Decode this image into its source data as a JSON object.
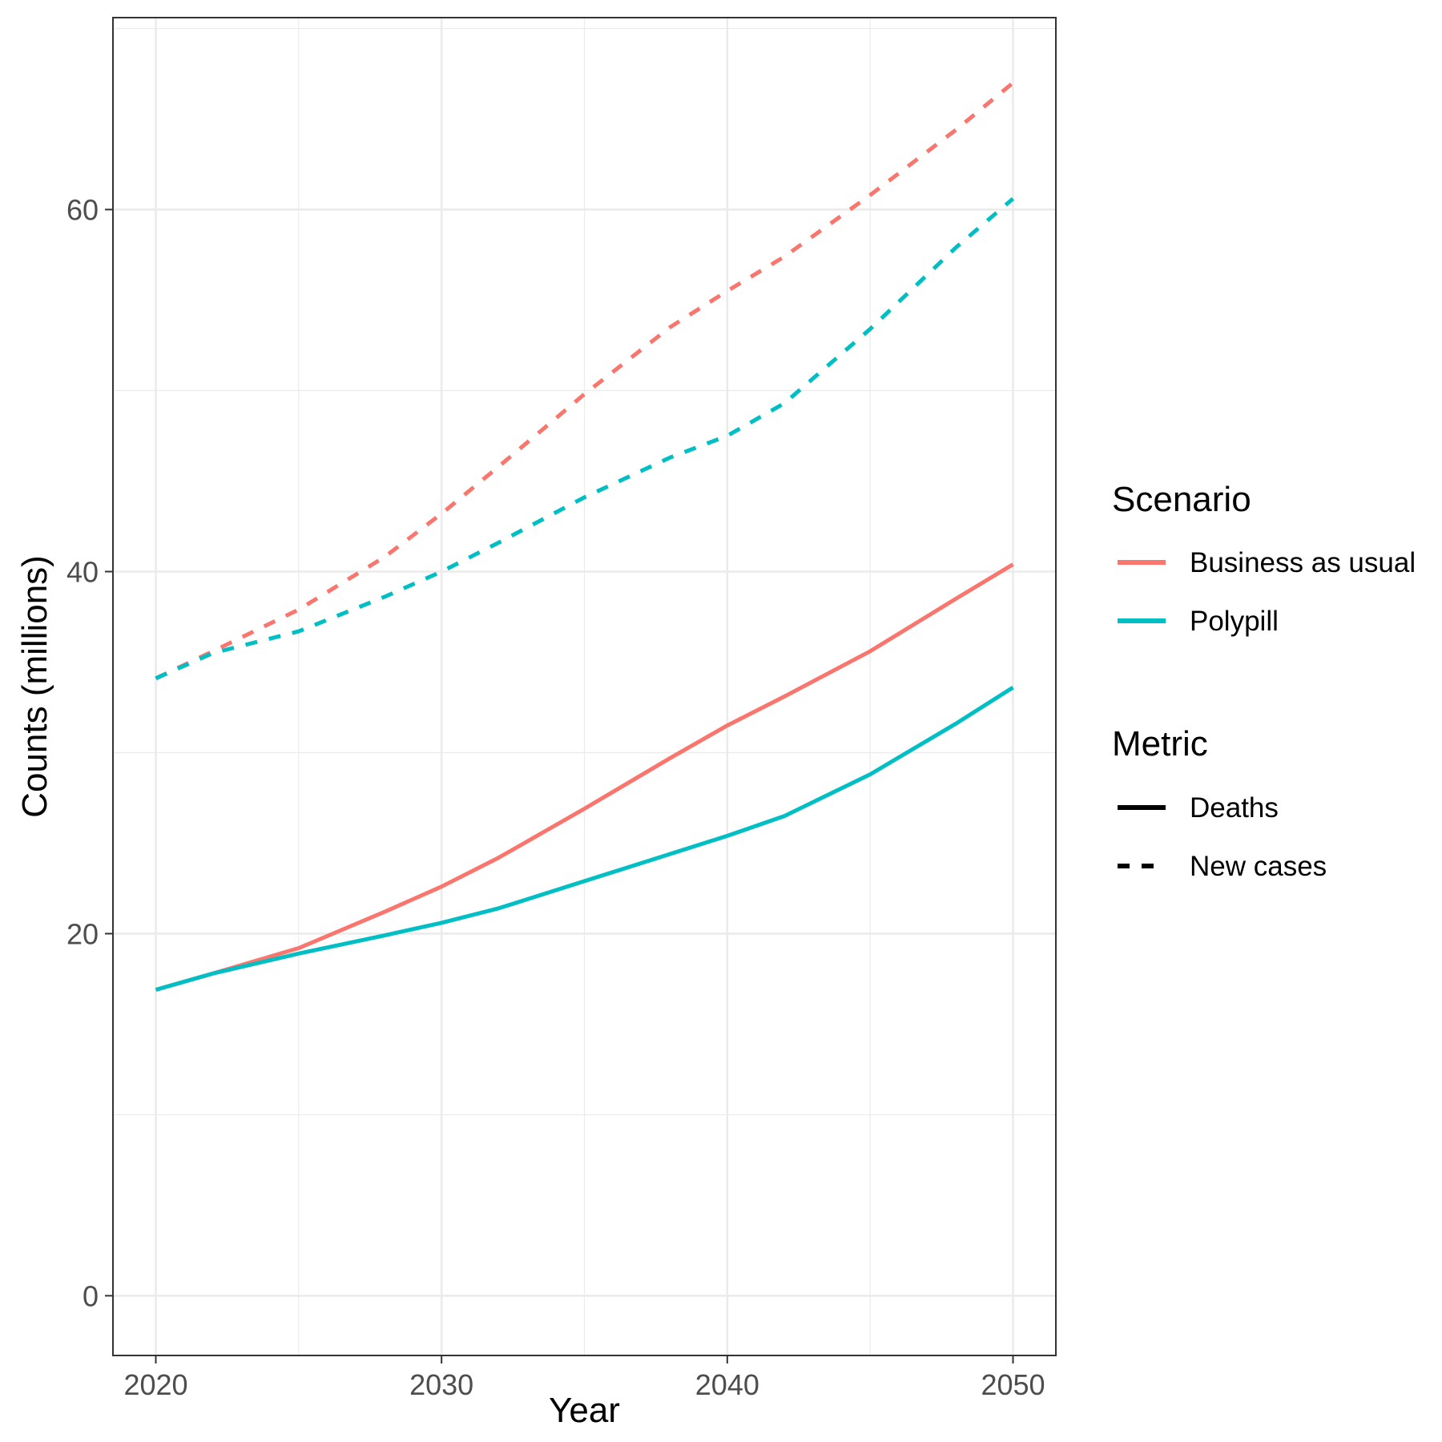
{
  "chart_data": {
    "type": "line",
    "xlabel": "Year",
    "ylabel": "Counts (millions)",
    "xlim": [
      2018.5,
      2051.5
    ],
    "ylim": [
      -3.3,
      70.6
    ],
    "x_ticks": [
      2020,
      2030,
      2040,
      2050
    ],
    "x_tick_labels": [
      "2020",
      "2030",
      "2040",
      "2050"
    ],
    "y_ticks": [
      0,
      20,
      40,
      60
    ],
    "y_tick_labels": [
      "0",
      "20",
      "40",
      "60"
    ],
    "grid": true,
    "legend_position": "right",
    "legends": [
      {
        "title": "Scenario",
        "entries": [
          {
            "label": "Business as usual",
            "color": "#F8766D"
          },
          {
            "label": "Polypill",
            "color": "#00BFC4"
          }
        ]
      },
      {
        "title": "Metric",
        "entries": [
          {
            "label": "Deaths",
            "linetype": "solid"
          },
          {
            "label": "New cases",
            "linetype": "dashed"
          }
        ]
      }
    ],
    "series": [
      {
        "scenario": "Business as usual",
        "metric": "New cases",
        "color": "#F8766D",
        "linetype": "dashed",
        "x": [
          2020,
          2022,
          2025,
          2028,
          2030,
          2032,
          2035,
          2038,
          2040,
          2042,
          2045,
          2048,
          2050
        ],
        "y": [
          34.1,
          35.6,
          37.9,
          40.8,
          43.2,
          45.8,
          49.8,
          53.5,
          55.5,
          57.4,
          60.8,
          64.4,
          67.0
        ]
      },
      {
        "scenario": "Polypill",
        "metric": "New cases",
        "color": "#00BFC4",
        "linetype": "dashed",
        "x": [
          2020,
          2022,
          2025,
          2028,
          2030,
          2032,
          2035,
          2038,
          2040,
          2042,
          2045,
          2048,
          2050
        ],
        "y": [
          34.1,
          35.5,
          36.7,
          38.6,
          40.0,
          41.6,
          44.1,
          46.3,
          47.5,
          49.3,
          53.4,
          57.9,
          60.6
        ]
      },
      {
        "scenario": "Business as usual",
        "metric": "Deaths",
        "color": "#F8766D",
        "linetype": "solid",
        "x": [
          2020,
          2022,
          2025,
          2028,
          2030,
          2032,
          2035,
          2038,
          2040,
          2042,
          2045,
          2048,
          2050
        ],
        "y": [
          16.9,
          17.8,
          19.2,
          21.2,
          22.6,
          24.2,
          26.9,
          29.7,
          31.5,
          33.1,
          35.6,
          38.5,
          40.4
        ]
      },
      {
        "scenario": "Polypill",
        "metric": "Deaths",
        "color": "#00BFC4",
        "linetype": "solid",
        "x": [
          2020,
          2022,
          2025,
          2028,
          2030,
          2032,
          2035,
          2038,
          2040,
          2042,
          2045,
          2048,
          2050
        ],
        "y": [
          16.9,
          17.8,
          18.9,
          19.9,
          20.6,
          21.4,
          22.9,
          24.4,
          25.4,
          26.5,
          28.8,
          31.6,
          33.6
        ]
      }
    ]
  }
}
